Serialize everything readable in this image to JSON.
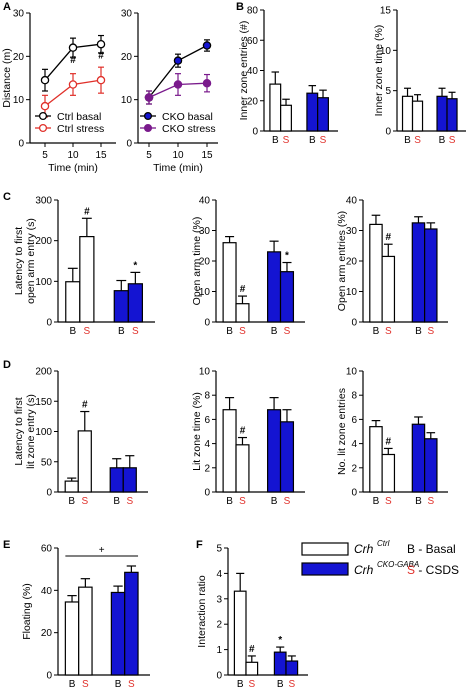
{
  "colors": {
    "black": "#000000",
    "red": "#e0302a",
    "blue": "#1414d2",
    "purple": "#7a1a8c",
    "white": "#ffffff"
  },
  "legend": {
    "ctrl_label": "Crh",
    "ctrl_sup": "Ctrl",
    "cko_label": "Crh",
    "cko_sup": "CKO-GABA",
    "b_key": "B - Basal",
    "s_key_letter": "S",
    "s_key_rest": " - CSDS"
  },
  "chart_data": [
    {
      "panel": "A",
      "type": "line",
      "ylabel": "Distance (m)",
      "xlabel": "Time (min)",
      "x": [
        5,
        10,
        15
      ],
      "ylim": [
        0,
        30
      ],
      "yticks": [
        0,
        10,
        20,
        30
      ],
      "series": [
        {
          "name": "Ctrl basal",
          "values": [
            14.5,
            22,
            22.8
          ],
          "err": [
            2.5,
            2.2,
            2.0
          ],
          "color": "black",
          "fill": "white"
        },
        {
          "name": "Ctrl stress",
          "values": [
            8.5,
            13.5,
            14.5
          ],
          "err": [
            2.5,
            2.5,
            3.0
          ],
          "color": "red",
          "fill": "white"
        }
      ],
      "annotations": [
        {
          "x": 10,
          "y": 18.5,
          "text": "#"
        },
        {
          "x": 15,
          "y": 19.5,
          "text": "#"
        }
      ]
    },
    {
      "panel": "A2",
      "type": "line",
      "ylabel": "",
      "xlabel": "Time (min)",
      "x": [
        5,
        10,
        15
      ],
      "ylim": [
        0,
        30
      ],
      "yticks": [
        0,
        10,
        20,
        30
      ],
      "series": [
        {
          "name": "CKO basal",
          "values": [
            10.5,
            19,
            22.5
          ],
          "err": [
            1.5,
            1.5,
            1.3
          ],
          "color": "black",
          "fill": "blue"
        },
        {
          "name": "CKO stress",
          "values": [
            10.5,
            13.5,
            13.8
          ],
          "err": [
            1.5,
            2.5,
            2.0
          ],
          "color": "purple",
          "fill": "purple"
        }
      ]
    },
    {
      "panel": "B",
      "type": "bar",
      "ylabel": "Inner zone entries (#)",
      "categories": [
        "B",
        "S",
        "B",
        "S"
      ],
      "values": [
        31,
        17,
        25,
        22
      ],
      "err": [
        8,
        4,
        5,
        5
      ],
      "ylim": [
        0,
        80
      ],
      "yticks": [
        0,
        20,
        40,
        60,
        80
      ]
    },
    {
      "panel": "B2",
      "type": "bar",
      "ylabel": "Inner zone time (%)",
      "categories": [
        "B",
        "S",
        "B",
        "S"
      ],
      "values": [
        4.3,
        3.7,
        4.3,
        4.0
      ],
      "err": [
        1.0,
        0.8,
        1.0,
        0.8
      ],
      "ylim": [
        0,
        15
      ],
      "yticks": [
        0,
        5,
        10,
        15
      ]
    },
    {
      "panel": "C",
      "type": "bar",
      "ylabel": "Latency to first open arm entry (s)",
      "categories": [
        "B",
        "S",
        "B",
        "S"
      ],
      "values": [
        99,
        210,
        77,
        94
      ],
      "err": [
        33,
        45,
        25,
        28
      ],
      "ylim": [
        0,
        300
      ],
      "yticks": [
        0,
        100,
        200,
        300
      ],
      "annotations": [
        {
          "index": 1,
          "text": "#"
        },
        {
          "index": 3,
          "text": "*"
        }
      ]
    },
    {
      "panel": "C2",
      "type": "bar",
      "ylabel": "Open arm time (%)",
      "categories": [
        "B",
        "S",
        "B",
        "S"
      ],
      "values": [
        26,
        6,
        23,
        16.5
      ],
      "err": [
        2,
        2.5,
        3.5,
        3
      ],
      "ylim": [
        0,
        40
      ],
      "yticks": [
        0,
        10,
        20,
        30,
        40
      ],
      "annotations": [
        {
          "index": 1,
          "text": "#"
        },
        {
          "index": 3,
          "text": "*"
        }
      ]
    },
    {
      "panel": "C3",
      "type": "bar",
      "ylabel": "Open arm entries (%)",
      "categories": [
        "B",
        "S",
        "B",
        "S"
      ],
      "values": [
        32,
        21.5,
        32.5,
        30.5
      ],
      "err": [
        3,
        4,
        2,
        2
      ],
      "ylim": [
        0,
        40
      ],
      "yticks": [
        0,
        10,
        20,
        30,
        40
      ],
      "annotations": [
        {
          "index": 1,
          "text": "#"
        }
      ]
    },
    {
      "panel": "D",
      "type": "bar",
      "ylabel": "Latency to first lit zone entry (s)",
      "categories": [
        "B",
        "S",
        "B",
        "S"
      ],
      "values": [
        18,
        101,
        40,
        40
      ],
      "err": [
        5,
        32,
        15,
        20
      ],
      "ylim": [
        0,
        200
      ],
      "yticks": [
        0,
        50,
        100,
        150,
        200
      ],
      "annotations": [
        {
          "index": 1,
          "text": "#"
        }
      ]
    },
    {
      "panel": "D2",
      "type": "bar",
      "ylabel": "Lit zone time (%)",
      "categories": [
        "B",
        "S",
        "B",
        "S"
      ],
      "values": [
        6.8,
        3.9,
        6.8,
        5.8
      ],
      "err": [
        1.0,
        0.6,
        1.0,
        1.0
      ],
      "ylim": [
        0,
        10
      ],
      "yticks": [
        0,
        2,
        4,
        6,
        8,
        10
      ],
      "annotations": [
        {
          "index": 1,
          "text": "#"
        }
      ]
    },
    {
      "panel": "D3",
      "type": "bar",
      "ylabel": "No. lit zone entries",
      "categories": [
        "B",
        "S",
        "B",
        "S"
      ],
      "values": [
        5.4,
        3.1,
        5.6,
        4.4
      ],
      "err": [
        0.5,
        0.5,
        0.6,
        0.5
      ],
      "ylim": [
        0,
        10
      ],
      "yticks": [
        0,
        2,
        4,
        6,
        8,
        10
      ],
      "annotations": [
        {
          "index": 1,
          "text": "#"
        }
      ]
    },
    {
      "panel": "E",
      "type": "bar",
      "ylabel": "Floating (%)",
      "categories": [
        "B",
        "S",
        "B",
        "S"
      ],
      "values": [
        34.5,
        41.5,
        39,
        48.5
      ],
      "err": [
        3,
        4,
        3,
        3
      ],
      "ylim": [
        0,
        60
      ],
      "yticks": [
        0,
        20,
        40,
        60
      ],
      "annotations": [
        {
          "text": "+"
        }
      ]
    },
    {
      "panel": "F",
      "type": "bar",
      "ylabel": "Interaction ratio",
      "categories": [
        "B",
        "S",
        "B",
        "S"
      ],
      "values": [
        3.3,
        0.5,
        0.9,
        0.55
      ],
      "err": [
        0.7,
        0.25,
        0.2,
        0.2
      ],
      "ylim": [
        0,
        5
      ],
      "yticks": [
        0,
        1,
        2,
        3,
        4,
        5
      ],
      "annotations": [
        {
          "index": 1,
          "text": "#"
        },
        {
          "index": 2,
          "text": "*"
        }
      ]
    }
  ]
}
